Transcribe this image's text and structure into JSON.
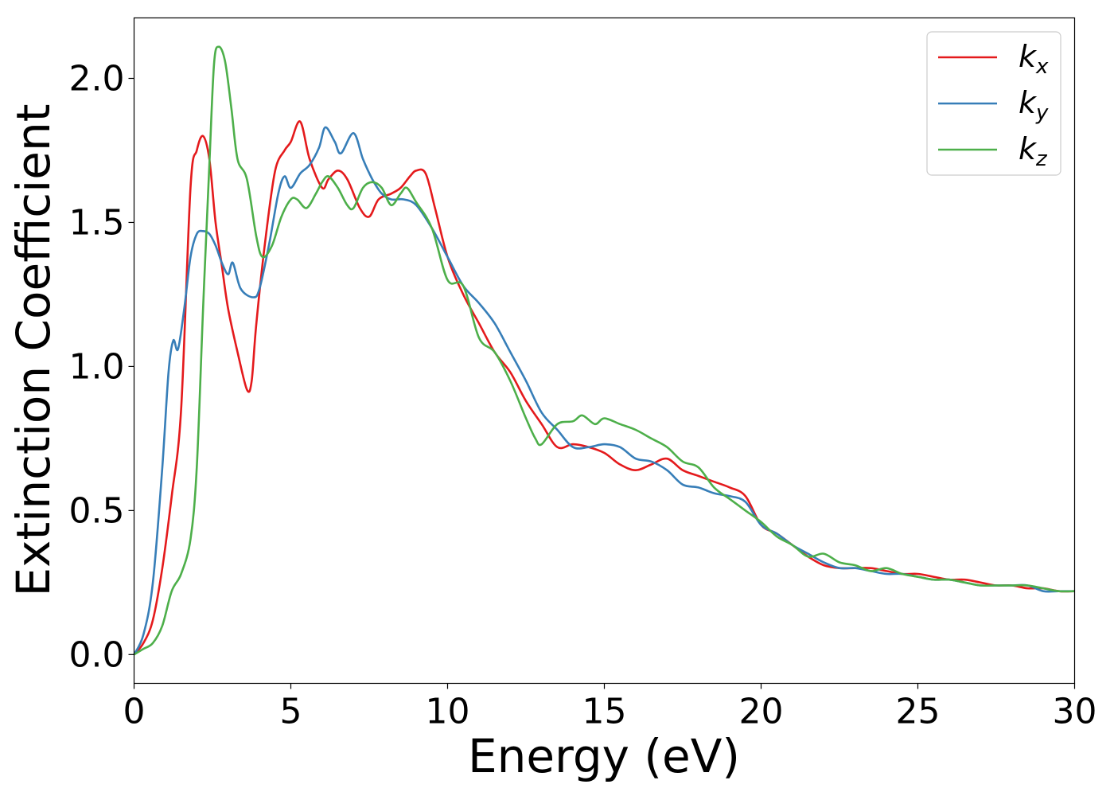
{
  "chart_data": {
    "type": "line",
    "xlabel": "Energy (eV)",
    "ylabel": "Extinction Coefficient",
    "xlim": [
      0,
      30
    ],
    "ylim": [
      -0.1,
      2.21
    ],
    "xticks": [
      0,
      5,
      10,
      15,
      20,
      25,
      30
    ],
    "yticks": [
      0.0,
      0.5,
      1.0,
      1.5,
      2.0
    ],
    "xtick_labels": [
      "0",
      "5",
      "10",
      "15",
      "20",
      "25",
      "30"
    ],
    "ytick_labels": [
      "0.0",
      "0.5",
      "1.0",
      "1.5",
      "2.0"
    ],
    "grid": false,
    "legend_position": "top-right",
    "series": [
      {
        "name": "k_x",
        "label_main": "k",
        "label_sub": "x",
        "color": "#e41a1c",
        "x": [
          0,
          0.3,
          0.6,
          0.9,
          1.2,
          1.5,
          1.8,
          2.0,
          2.2,
          2.4,
          2.6,
          2.8,
          3.0,
          3.3,
          3.6,
          3.75,
          3.9,
          4.2,
          4.5,
          4.8,
          5.0,
          5.3,
          5.6,
          6.0,
          6.2,
          6.5,
          6.8,
          7.2,
          7.5,
          7.8,
          8.2,
          8.5,
          8.8,
          9.0,
          9.3,
          9.6,
          10.0,
          10.5,
          11.0,
          11.5,
          12.0,
          12.5,
          13.0,
          13.5,
          14.0,
          14.5,
          15.0,
          15.5,
          16.0,
          16.5,
          17.0,
          17.5,
          18.0,
          18.5,
          19.0,
          19.5,
          20.0,
          20.5,
          21.0,
          21.5,
          22.0,
          22.5,
          23.0,
          23.5,
          24.0,
          24.5,
          25.0,
          25.5,
          26.0,
          26.5,
          27.0,
          27.5,
          28.0,
          28.5,
          29.0,
          29.5,
          30.0
        ],
        "values": [
          0.0,
          0.04,
          0.12,
          0.3,
          0.55,
          0.85,
          1.62,
          1.75,
          1.8,
          1.72,
          1.5,
          1.35,
          1.2,
          1.05,
          0.92,
          0.95,
          1.15,
          1.45,
          1.68,
          1.75,
          1.78,
          1.85,
          1.72,
          1.62,
          1.65,
          1.68,
          1.65,
          1.55,
          1.52,
          1.58,
          1.6,
          1.62,
          1.66,
          1.68,
          1.67,
          1.55,
          1.38,
          1.25,
          1.15,
          1.05,
          0.98,
          0.88,
          0.8,
          0.72,
          0.73,
          0.72,
          0.7,
          0.66,
          0.64,
          0.66,
          0.68,
          0.64,
          0.62,
          0.6,
          0.58,
          0.55,
          0.45,
          0.42,
          0.38,
          0.34,
          0.31,
          0.3,
          0.3,
          0.3,
          0.29,
          0.28,
          0.28,
          0.27,
          0.26,
          0.26,
          0.25,
          0.24,
          0.24,
          0.23,
          0.23,
          0.22,
          0.22
        ]
      },
      {
        "name": "k_y",
        "label_main": "k",
        "label_sub": "y",
        "color": "#377eb8",
        "x": [
          0,
          0.3,
          0.6,
          0.9,
          1.1,
          1.25,
          1.4,
          1.6,
          1.8,
          2.0,
          2.2,
          2.4,
          2.6,
          2.8,
          3.0,
          3.15,
          3.4,
          3.8,
          4.0,
          4.3,
          4.6,
          4.8,
          5.0,
          5.3,
          5.6,
          5.9,
          6.1,
          6.4,
          6.6,
          7.0,
          7.3,
          7.6,
          7.9,
          8.2,
          8.6,
          9.0,
          9.5,
          10.0,
          10.5,
          11.0,
          11.5,
          12.0,
          12.5,
          13.0,
          13.5,
          14.0,
          14.5,
          15.0,
          15.5,
          16.0,
          16.5,
          17.0,
          17.5,
          18.0,
          18.5,
          19.0,
          19.5,
          20.0,
          20.5,
          21.0,
          21.5,
          22.0,
          22.5,
          23.0,
          23.5,
          24.0,
          24.5,
          25.0,
          25.5,
          26.0,
          26.5,
          27.0,
          27.5,
          28.0,
          28.5,
          29.0,
          29.5,
          30.0
        ],
        "values": [
          0.0,
          0.07,
          0.25,
          0.65,
          0.98,
          1.09,
          1.06,
          1.2,
          1.38,
          1.46,
          1.47,
          1.46,
          1.42,
          1.36,
          1.32,
          1.36,
          1.27,
          1.24,
          1.27,
          1.42,
          1.6,
          1.66,
          1.62,
          1.67,
          1.7,
          1.76,
          1.83,
          1.78,
          1.74,
          1.81,
          1.72,
          1.65,
          1.6,
          1.58,
          1.58,
          1.56,
          1.48,
          1.38,
          1.28,
          1.22,
          1.15,
          1.05,
          0.95,
          0.84,
          0.78,
          0.72,
          0.72,
          0.73,
          0.72,
          0.68,
          0.67,
          0.64,
          0.59,
          0.58,
          0.56,
          0.55,
          0.53,
          0.45,
          0.42,
          0.38,
          0.35,
          0.32,
          0.3,
          0.3,
          0.29,
          0.28,
          0.28,
          0.27,
          0.26,
          0.26,
          0.25,
          0.24,
          0.24,
          0.24,
          0.24,
          0.22,
          0.22,
          0.22
        ]
      },
      {
        "name": "k_z",
        "label_main": "k",
        "label_sub": "z",
        "color": "#4daf4a",
        "x": [
          0,
          0.3,
          0.6,
          0.9,
          1.2,
          1.5,
          1.8,
          2.0,
          2.2,
          2.4,
          2.55,
          2.7,
          2.9,
          3.1,
          3.3,
          3.6,
          3.9,
          4.1,
          4.4,
          4.7,
          5.0,
          5.2,
          5.5,
          5.8,
          6.0,
          6.2,
          6.5,
          6.8,
          7.0,
          7.3,
          7.6,
          7.9,
          8.2,
          8.5,
          8.7,
          9.0,
          9.5,
          10.0,
          10.5,
          11.0,
          11.5,
          12.0,
          12.5,
          12.8,
          13.0,
          13.5,
          14.0,
          14.3,
          14.7,
          15.0,
          15.5,
          16.0,
          16.5,
          17.0,
          17.5,
          18.0,
          18.5,
          19.0,
          19.5,
          20.0,
          20.5,
          21.0,
          21.5,
          22.0,
          22.5,
          23.0,
          23.5,
          24.0,
          24.5,
          25.0,
          25.5,
          26.0,
          26.5,
          27.0,
          27.5,
          28.0,
          28.5,
          29.0,
          29.5,
          30.0
        ],
        "values": [
          0.0,
          0.02,
          0.04,
          0.1,
          0.22,
          0.28,
          0.4,
          0.65,
          1.2,
          1.7,
          2.05,
          2.11,
          2.06,
          1.9,
          1.72,
          1.65,
          1.45,
          1.38,
          1.42,
          1.52,
          1.58,
          1.58,
          1.55,
          1.6,
          1.64,
          1.66,
          1.62,
          1.56,
          1.55,
          1.62,
          1.64,
          1.62,
          1.56,
          1.6,
          1.62,
          1.57,
          1.48,
          1.3,
          1.28,
          1.1,
          1.05,
          0.95,
          0.82,
          0.75,
          0.73,
          0.8,
          0.81,
          0.83,
          0.8,
          0.82,
          0.8,
          0.78,
          0.75,
          0.72,
          0.67,
          0.65,
          0.58,
          0.54,
          0.5,
          0.46,
          0.41,
          0.38,
          0.34,
          0.35,
          0.32,
          0.31,
          0.29,
          0.3,
          0.28,
          0.27,
          0.26,
          0.26,
          0.25,
          0.24,
          0.24,
          0.24,
          0.24,
          0.23,
          0.22,
          0.22
        ]
      }
    ]
  }
}
